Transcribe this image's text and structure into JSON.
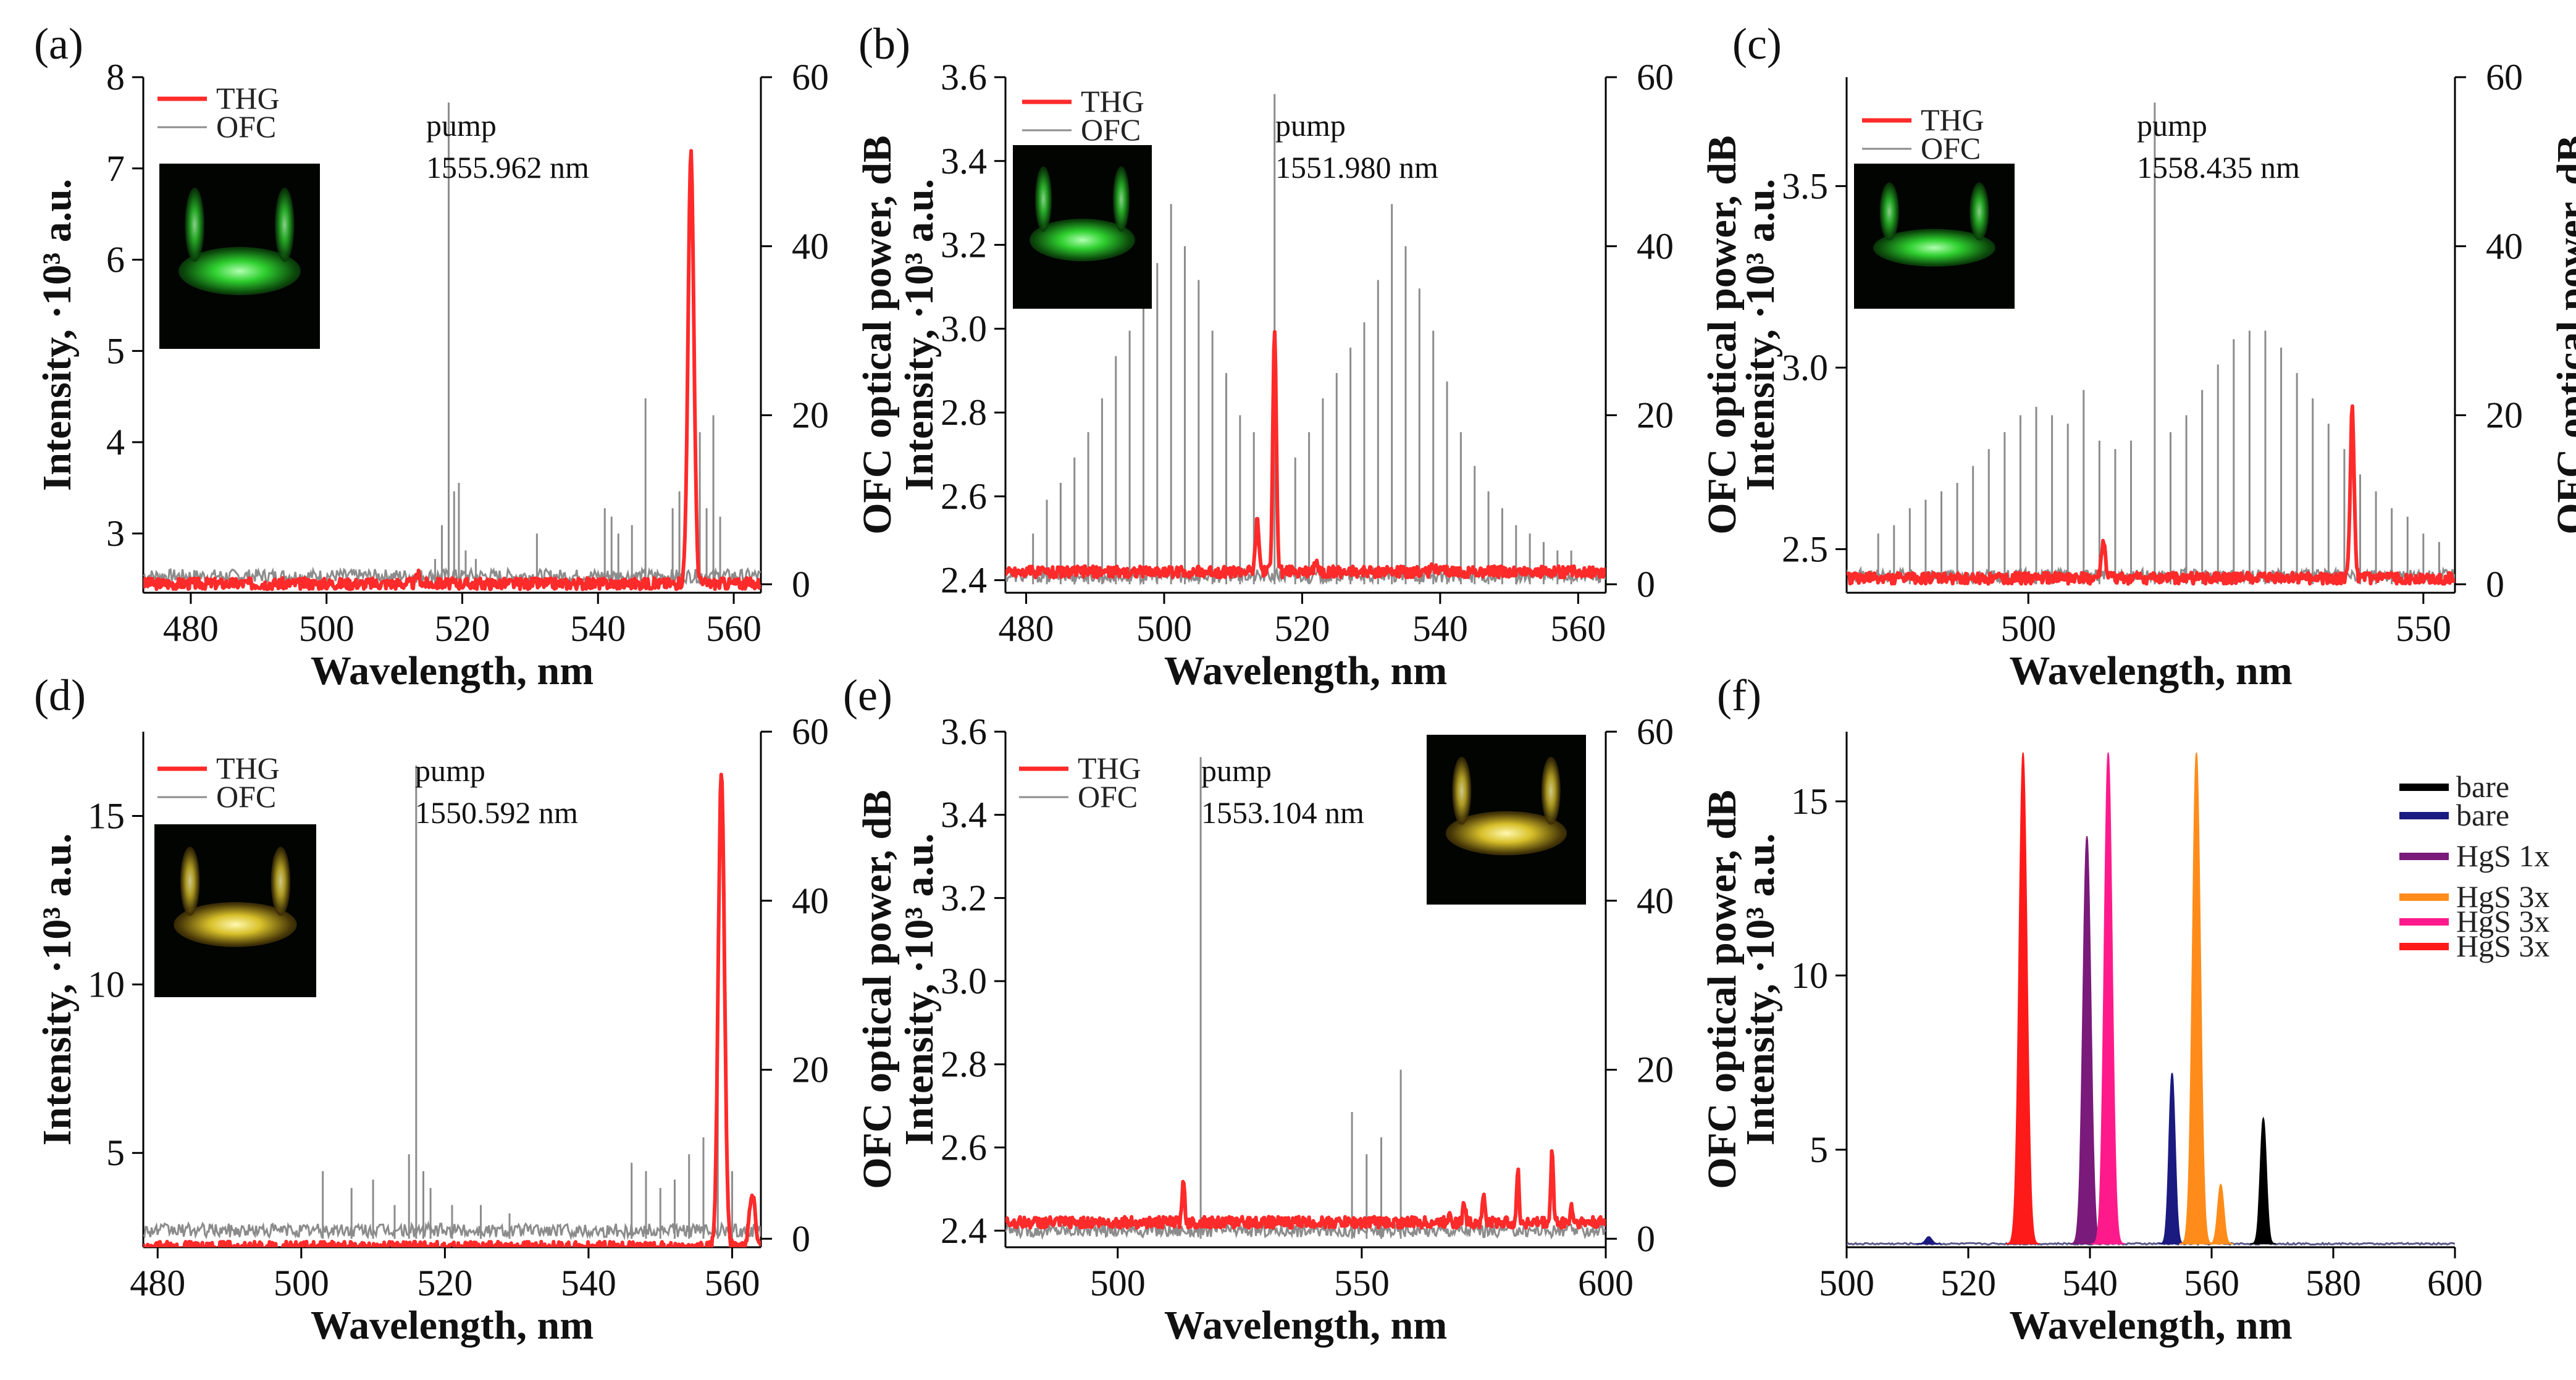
{
  "chart_data": [
    {
      "panel": "(a)",
      "type": "line",
      "xlabel": "Wavelength, nm",
      "ylabel": "Intensity, ·10³ a.u.",
      "y2label": "OFC optical power, dB",
      "xlim": [
        473,
        564
      ],
      "ylim": [
        2.35,
        8.0
      ],
      "y2lim": [
        -1,
        60
      ],
      "xticks": [
        480,
        500,
        520,
        540,
        560
      ],
      "yticks": [
        3,
        4,
        5,
        6,
        7,
        8
      ],
      "y2ticks": [
        0,
        20,
        40,
        60
      ],
      "legend": [
        "THG",
        "OFC"
      ],
      "pump_label": "pump",
      "pump_wavelength": "1555.962 nm",
      "pump_x": 518,
      "thg_baseline": 2.45,
      "thg_peaks": [
        [
          513.5,
          0.1
        ],
        [
          553.7,
          4.7
        ]
      ],
      "ofc_lines": [
        [
          516,
          3
        ],
        [
          517,
          7
        ],
        [
          518,
          57
        ],
        [
          518.8,
          11
        ],
        [
          519.5,
          12
        ],
        [
          520.5,
          4
        ],
        [
          522,
          3
        ],
        [
          531,
          6
        ],
        [
          541,
          9
        ],
        [
          542,
          8
        ],
        [
          543,
          6
        ],
        [
          545,
          7
        ],
        [
          547,
          22
        ],
        [
          551,
          9
        ],
        [
          552,
          11
        ],
        [
          555,
          18
        ],
        [
          556,
          9
        ],
        [
          557,
          20
        ],
        [
          558,
          8
        ]
      ],
      "inset": "green"
    },
    {
      "panel": "(b)",
      "type": "line",
      "xlabel": "Wavelength, nm",
      "ylabel": "Intensity, ·10³ a.u.",
      "y2label": "OFC optical power, dB",
      "xlim": [
        477,
        564
      ],
      "ylim": [
        2.37,
        3.6
      ],
      "y2lim": [
        -1,
        60
      ],
      "xticks": [
        480,
        500,
        520,
        540,
        560
      ],
      "yticks": [
        2.4,
        2.6,
        2.8,
        3.0,
        3.2,
        3.4,
        3.6
      ],
      "y2ticks": [
        0,
        20,
        40,
        60
      ],
      "legend": [
        "THG",
        "OFC"
      ],
      "pump_label": "pump",
      "pump_wavelength": "1551.980 nm",
      "pump_x": 516,
      "thg_baseline": 2.42,
      "thg_peaks": [
        [
          516,
          0.58
        ],
        [
          513.5,
          0.12
        ],
        [
          522,
          0.03
        ],
        [
          539,
          0.02
        ]
      ],
      "ofc_lines": [
        [
          481,
          6
        ],
        [
          483,
          10
        ],
        [
          485,
          12
        ],
        [
          487,
          15
        ],
        [
          489,
          18
        ],
        [
          491,
          22
        ],
        [
          493,
          27
        ],
        [
          495,
          30
        ],
        [
          497,
          35
        ],
        [
          499,
          38
        ],
        [
          501,
          45
        ],
        [
          503,
          40
        ],
        [
          505,
          36
        ],
        [
          507,
          30
        ],
        [
          509,
          25
        ],
        [
          511,
          20
        ],
        [
          513,
          18
        ],
        [
          516,
          58
        ],
        [
          519,
          15
        ],
        [
          521,
          18
        ],
        [
          523,
          22
        ],
        [
          525,
          25
        ],
        [
          527,
          28
        ],
        [
          529,
          31
        ],
        [
          531,
          36
        ],
        [
          533,
          45
        ],
        [
          535,
          40
        ],
        [
          537,
          35
        ],
        [
          539,
          30
        ],
        [
          541,
          24
        ],
        [
          543,
          18
        ],
        [
          545,
          14
        ],
        [
          547,
          11
        ],
        [
          549,
          9
        ],
        [
          551,
          7
        ],
        [
          553,
          6
        ],
        [
          555,
          5
        ],
        [
          557,
          4
        ],
        [
          559,
          4
        ]
      ],
      "inset": "green"
    },
    {
      "panel": "(c)",
      "type": "line",
      "xlabel": "Wavelength, nm",
      "ylabel": "Intensity, ·10³ a.u.",
      "y2label": "OFC optical power, dB",
      "xlim": [
        477,
        554
      ],
      "ylim": [
        2.38,
        3.8
      ],
      "y2lim": [
        -1,
        60
      ],
      "xticks": [
        500,
        550
      ],
      "yticks": [
        2.5,
        3.0,
        3.5
      ],
      "y2ticks": [
        0,
        20,
        40,
        60
      ],
      "legend": [
        "THG",
        "OFC"
      ],
      "pump_label": "pump",
      "pump_wavelength": "1558.435 nm",
      "pump_x": 516,
      "thg_baseline": 2.42,
      "thg_peaks": [
        [
          509.5,
          0.1
        ],
        [
          541,
          0.46
        ]
      ],
      "ofc_lines": [
        [
          481,
          6
        ],
        [
          483,
          7
        ],
        [
          485,
          9
        ],
        [
          487,
          10
        ],
        [
          489,
          11
        ],
        [
          491,
          12
        ],
        [
          493,
          14
        ],
        [
          495,
          16
        ],
        [
          497,
          18
        ],
        [
          499,
          20
        ],
        [
          501,
          21
        ],
        [
          503,
          20
        ],
        [
          505,
          19
        ],
        [
          507,
          23
        ],
        [
          509,
          17
        ],
        [
          511,
          16
        ],
        [
          513,
          17
        ],
        [
          516,
          57
        ],
        [
          518,
          18
        ],
        [
          520,
          20
        ],
        [
          522,
          23
        ],
        [
          524,
          26
        ],
        [
          526,
          29
        ],
        [
          528,
          30
        ],
        [
          530,
          30
        ],
        [
          532,
          28
        ],
        [
          534,
          25
        ],
        [
          536,
          22
        ],
        [
          538,
          19
        ],
        [
          540,
          16
        ],
        [
          542,
          13
        ],
        [
          544,
          11
        ],
        [
          546,
          9
        ],
        [
          548,
          8
        ],
        [
          550,
          6
        ],
        [
          552,
          5
        ]
      ],
      "inset": "green"
    },
    {
      "panel": "(d)",
      "type": "line",
      "xlabel": "Wavelength, nm",
      "ylabel": "Intensity, ·10³ a.u.",
      "y2label": "OFC optical power, dB",
      "xlim": [
        478,
        564
      ],
      "ylim": [
        2.2,
        17.5
      ],
      "y2lim": [
        -1,
        60
      ],
      "xticks": [
        480,
        500,
        520,
        540,
        560
      ],
      "yticks": [
        5,
        10,
        15
      ],
      "y2ticks": [
        0,
        20,
        40,
        60
      ],
      "legend": [
        "THG",
        "OFC"
      ],
      "pump_label": "pump",
      "pump_wavelength": "1550.592 nm",
      "pump_x": 516,
      "thg_baseline": 2.2,
      "thg_peaks": [
        [
          558.5,
          14.2
        ],
        [
          562.8,
          1.5
        ]
      ],
      "ofc_lines": [
        [
          503,
          8
        ],
        [
          507,
          6
        ],
        [
          510,
          7
        ],
        [
          513,
          4
        ],
        [
          515,
          10
        ],
        [
          516,
          56
        ],
        [
          517,
          8
        ],
        [
          518,
          6
        ],
        [
          521,
          4
        ],
        [
          525,
          4
        ],
        [
          529,
          3
        ],
        [
          546,
          9
        ],
        [
          548,
          8
        ],
        [
          550,
          6
        ],
        [
          552,
          7
        ],
        [
          554,
          10
        ],
        [
          556,
          12
        ],
        [
          558,
          20
        ],
        [
          560,
          8
        ]
      ],
      "inset": "yellow"
    },
    {
      "panel": "(e)",
      "type": "line",
      "xlabel": "Wavelength, nm",
      "ylabel": "Intensity, ·10³ a.u.",
      "y2label": "OFC optical power, dB",
      "xlim": [
        477,
        600
      ],
      "ylim": [
        2.36,
        3.6
      ],
      "y2lim": [
        -1,
        60
      ],
      "xticks": [
        500,
        550,
        600
      ],
      "yticks": [
        2.4,
        2.6,
        2.8,
        3.0,
        3.2,
        3.4,
        3.6
      ],
      "y2ticks": [
        0,
        20,
        40,
        60
      ],
      "legend": [
        "THG",
        "OFC"
      ],
      "pump_label": "pump",
      "pump_wavelength": "1553.104 nm",
      "pump_x": 517,
      "thg_baseline": 2.42,
      "thg_peaks": [
        [
          513.5,
          0.1
        ],
        [
          568,
          0.03
        ],
        [
          571,
          0.05
        ],
        [
          575,
          0.07
        ],
        [
          582,
          0.12
        ],
        [
          589,
          0.18
        ],
        [
          593,
          0.04
        ]
      ],
      "ofc_lines": [
        [
          517,
          57
        ],
        [
          548,
          15
        ],
        [
          551,
          10
        ],
        [
          554,
          12
        ],
        [
          558,
          20
        ]
      ],
      "inset": "yellow"
    },
    {
      "panel": "(f)",
      "type": "area",
      "xlabel": "Wavelength, nm",
      "ylabel": "Intensity, ·10³ a.u.",
      "xlim": [
        500,
        600
      ],
      "ylim": [
        2.2,
        17.0
      ],
      "xticks": [
        500,
        520,
        540,
        560,
        580,
        600
      ],
      "yticks": [
        5,
        10,
        15
      ],
      "baseline": 2.3,
      "series": [
        {
          "name": "bare",
          "color": "#000000",
          "peaks": [
            [
              568.5,
              5.9
            ]
          ]
        },
        {
          "name": "bare",
          "color": "#1a1a80",
          "peaks": [
            [
              553.5,
              7.2
            ],
            [
              513.5,
              2.5
            ]
          ]
        },
        {
          "name": "HgS 1x",
          "color": "#7a1a7a",
          "peaks": [
            [
              539.5,
              14.0
            ]
          ]
        },
        {
          "name": "HgS 3x",
          "color": "#ff8c1a",
          "peaks": [
            [
              557.5,
              16.4
            ],
            [
              561.5,
              4.0
            ]
          ]
        },
        {
          "name": "HgS 3x",
          "color": "#ff1a8c",
          "peaks": [
            [
              543,
              16.4
            ]
          ]
        },
        {
          "name": "HgS 3x",
          "color": "#ff1a1a",
          "peaks": [
            [
              529,
              16.4
            ]
          ]
        }
      ]
    }
  ]
}
